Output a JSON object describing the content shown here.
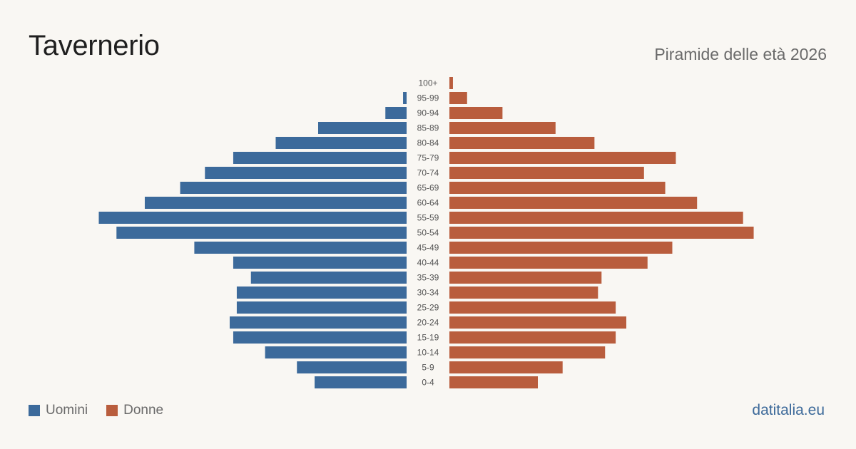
{
  "header": {
    "title": "Tavernerio",
    "subtitle": "Piramide delle età 2026"
  },
  "legend": {
    "men_label": "Uomini",
    "women_label": "Donne"
  },
  "footer": {
    "brand": "datitalia.eu"
  },
  "colors": {
    "men": "#3c6a9b",
    "women": "#b95d3d",
    "age_label": "#555555"
  },
  "chart_data": {
    "type": "bar",
    "orientation": "horizontal-population-pyramid",
    "categories": [
      "100+",
      "95-99",
      "90-94",
      "85-89",
      "80-84",
      "75-79",
      "70-74",
      "65-69",
      "60-64",
      "55-59",
      "50-54",
      "45-49",
      "40-44",
      "35-39",
      "30-34",
      "25-29",
      "20-24",
      "15-19",
      "10-14",
      "5-9",
      "0-4"
    ],
    "series": [
      {
        "name": "Uomini",
        "values": [
          0,
          1,
          6,
          25,
          37,
          49,
          57,
          64,
          74,
          87,
          82,
          60,
          49,
          44,
          48,
          48,
          50,
          49,
          40,
          31,
          26
        ]
      },
      {
        "name": "Donne",
        "values": [
          1,
          5,
          15,
          30,
          41,
          64,
          55,
          61,
          70,
          83,
          86,
          63,
          56,
          43,
          42,
          47,
          50,
          47,
          44,
          32,
          25
        ]
      }
    ],
    "grid": false,
    "legend_position": "bottom-left"
  }
}
